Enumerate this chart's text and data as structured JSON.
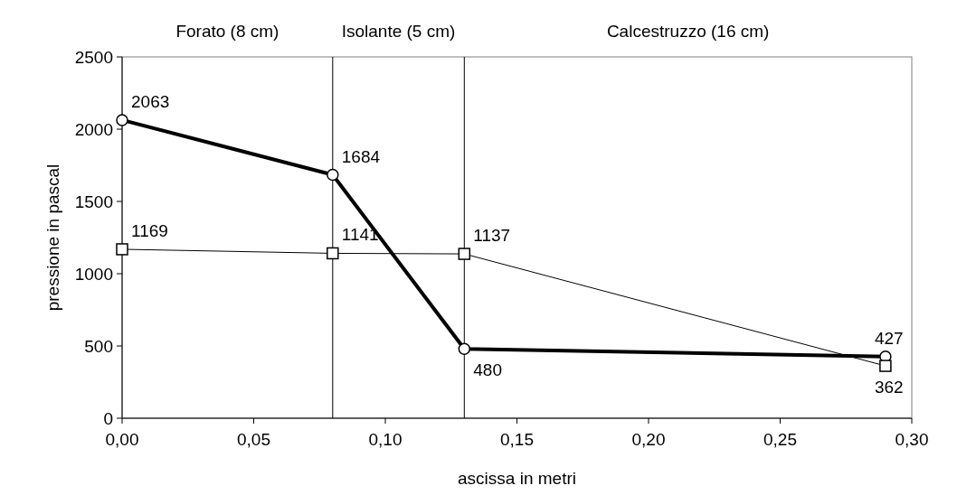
{
  "chart_data": {
    "type": "line",
    "xlabel": "ascissa in metri",
    "ylabel": "pressione in pascal",
    "x": [
      0,
      0.08,
      0.13,
      0.29
    ],
    "series": [
      {
        "color": "#000000",
        "values": [
          2063,
          1684,
          480,
          427
        ],
        "marker": "circle"
      },
      {
        "color": "#000000",
        "values": [
          1169,
          1141,
          1137,
          362
        ],
        "marker": "square"
      }
    ],
    "data_labels": true,
    "xlim": [
      0,
      0.3
    ],
    "xticks": [
      {
        "value": 0,
        "label": "0,00"
      },
      {
        "value": 0.05,
        "label": "0,05"
      },
      {
        "value": 0.1,
        "label": "0,10"
      },
      {
        "value": 0.15,
        "label": "0,15"
      },
      {
        "value": 0.2,
        "label": "0,20"
      },
      {
        "value": 0.25,
        "label": "0,25"
      },
      {
        "value": 0.3,
        "label": "0,30"
      }
    ],
    "ylim": [
      0,
      2500
    ],
    "yticks": [
      0,
      500,
      1000,
      1500,
      2000,
      2500
    ],
    "ref_lines": [
      {
        "axis": "x",
        "value": 0.08,
        "color": "#000000"
      },
      {
        "axis": "x",
        "value": 0.13,
        "color": "#000000"
      }
    ],
    "annotations": [
      "Forato (8 cm)",
      "Isolante (5 cm)",
      "Calcestruzzo (16 cm)"
    ],
    "grid": false
  }
}
